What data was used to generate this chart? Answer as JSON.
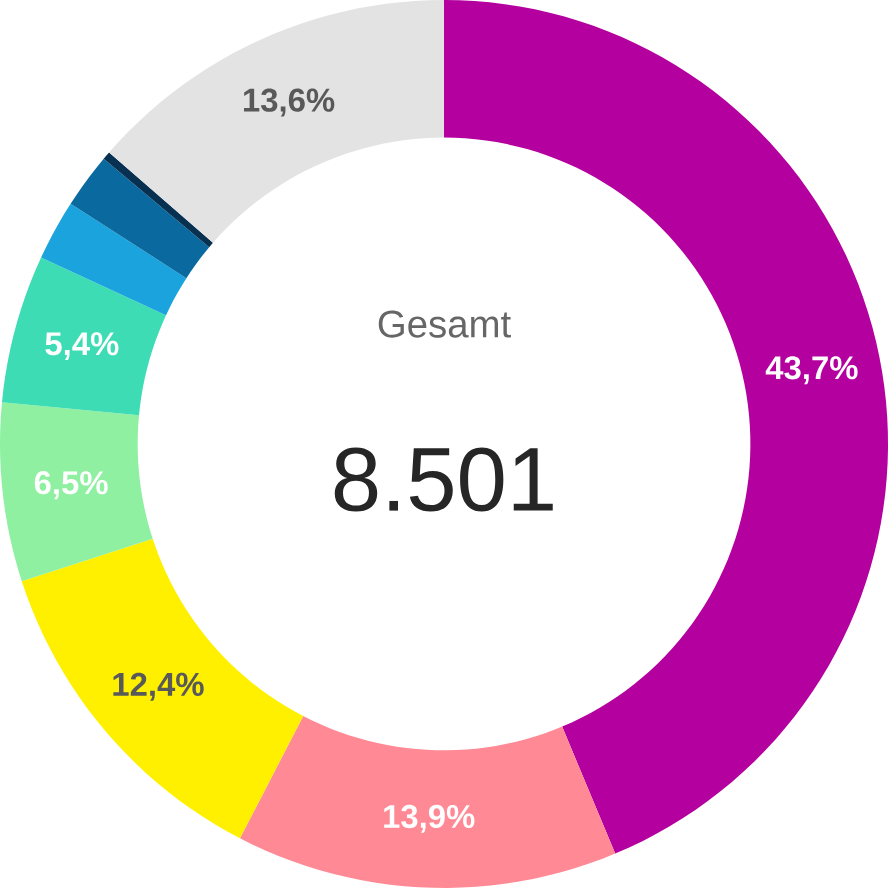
{
  "chart_data": {
    "type": "donut",
    "categories": [
      null,
      null,
      null,
      null,
      null,
      null,
      null,
      null,
      null
    ],
    "values": [
      43.7,
      13.9,
      12.4,
      6.5,
      5.4,
      2.2,
      2.0,
      0.3,
      13.6
    ],
    "colors": [
      "#b4009e",
      "#ff8a95",
      "#fff000",
      "#8ef0a0",
      "#3ddcb5",
      "#1aa3dc",
      "#0a6aa0",
      "#083050",
      "#e3e3e3"
    ],
    "value_labels": [
      "43,7%",
      "13,9%",
      "12,4%",
      "6,5%",
      "5,4%",
      null,
      null,
      null,
      "13,6%"
    ],
    "annotations": [
      "Gesamt",
      "8.501"
    ]
  }
}
